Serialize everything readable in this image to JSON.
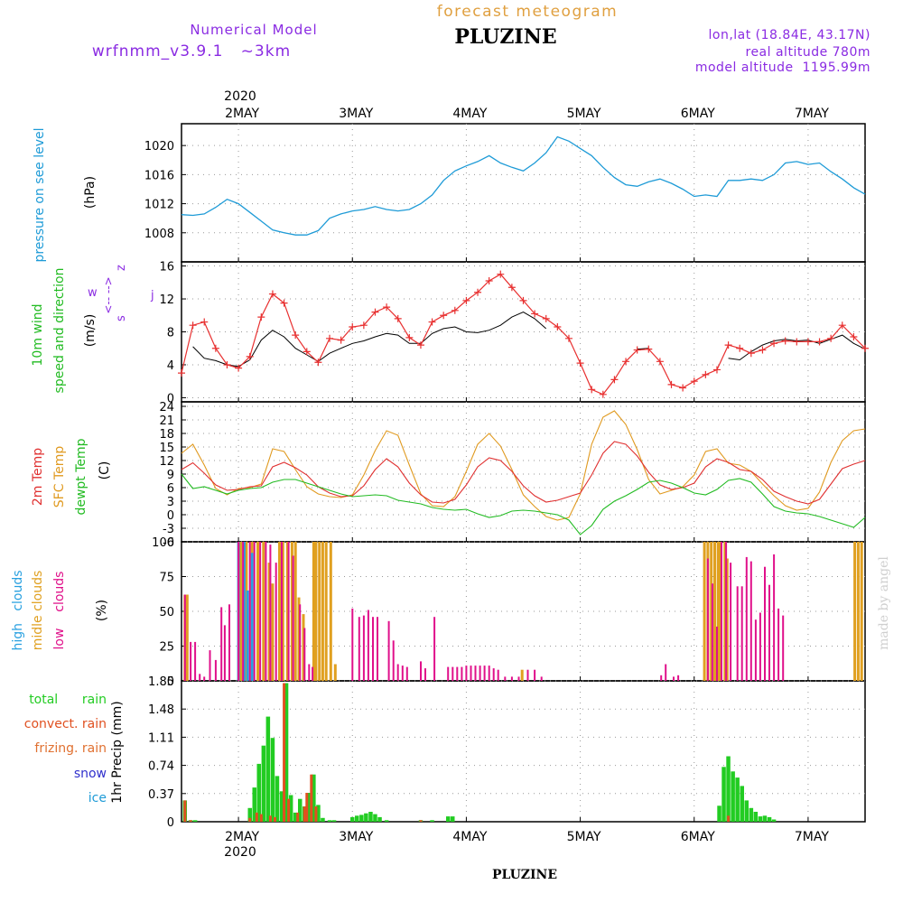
{
  "header": {
    "subtitle_top": "forecast meteogram",
    "title": "PLUZINE",
    "model_label": "Numerical Model",
    "model_name": "wrfnmm_v3.9.1   ~3km",
    "coords": "lon,lat (18.84E, 43.17N)",
    "real_altitude": "real altitude 780m",
    "model_altitude": "model altitude  1195.99m",
    "footer_title": "PLUZINE",
    "credit": "made by angel"
  },
  "time_axis": {
    "year": "2020",
    "days": [
      "2MAY",
      "3MAY",
      "4MAY",
      "5MAY",
      "6MAY",
      "7MAY"
    ]
  },
  "labels": {
    "pressure_label": "pressure on see level",
    "pressure_unit": "(hPa)",
    "wind_label_1": "10m wind",
    "wind_label_2": "speed and direction",
    "wind_unit": "(m/s)",
    "wind_w": "w",
    "wind_z": "z",
    "wind_s": "s",
    "wind_j": "j",
    "wind_arrows": "<-- -->",
    "temp_2m": "2m Temp",
    "temp_sfc": "SFC Temp",
    "temp_dew": "dewpt Temp",
    "temp_unit": "(C)",
    "cloud_high": "high   clouds",
    "cloud_mid": "midle clouds",
    "cloud_low": "low    clouds",
    "cloud_unit": "(%)",
    "rain_total": "total      rain",
    "rain_convect": "convect. rain",
    "rain_frizing": "frizing. rain",
    "rain_snow": "snow",
    "rain_ice": "ice",
    "rain_unit": "1hr Precip (mm)"
  },
  "colors": {
    "pressure": "#1e9bd7",
    "wind_label": "#22bb22",
    "wind_speed": "#e83030",
    "wind_gust": "#000000",
    "temp_2m": "#e03030",
    "temp_sfc": "#e09a20",
    "temp_dew": "#22bb22",
    "cloud_high": "#28a0e0",
    "cloud_mid": "#e0a020",
    "cloud_low": "#e0108a",
    "rain_total": "#22cc22",
    "rain_convect": "#e05020",
    "rain_snow": "#3030cc",
    "rain_ice": "#1e9bd7",
    "header_purple": "#8a2be2",
    "header_orange": "#e0a040"
  },
  "chart_data": [
    {
      "type": "line",
      "name": "pressure",
      "ylabel": "pressure on see level (hPa)",
      "yticks": [
        "1008",
        "1012",
        "1016",
        "1020"
      ],
      "ylim": [
        1004,
        1023
      ],
      "x_days": [
        1.5,
        1.6,
        1.7,
        1.8,
        1.9,
        2.0,
        2.1,
        2.2,
        2.3,
        2.4,
        2.5,
        2.6,
        2.7,
        2.8,
        2.9,
        3.0,
        3.1,
        3.2,
        3.3,
        3.4,
        3.5,
        3.6,
        3.7,
        3.8,
        3.9,
        4.0,
        4.1,
        4.2,
        4.3,
        4.4,
        4.5,
        4.6,
        4.7,
        4.8,
        4.9,
        5.0,
        5.1,
        5.2,
        5.3,
        5.4,
        5.5,
        5.6,
        5.7,
        5.8,
        5.9,
        6.0,
        6.1,
        6.2,
        6.3,
        6.4,
        6.5,
        6.6,
        6.7,
        6.8,
        6.9,
        7.0,
        7.1,
        7.2,
        7.3,
        7.4,
        7.5
      ],
      "values": [
        1010.5,
        1010.4,
        1010.6,
        1011.5,
        1012.6,
        1012.0,
        1010.8,
        1009.6,
        1008.4,
        1008.0,
        1007.7,
        1007.7,
        1008.3,
        1010.0,
        1010.6,
        1011.0,
        1011.2,
        1011.6,
        1011.2,
        1011.0,
        1011.2,
        1012.0,
        1013.2,
        1015.2,
        1016.5,
        1017.2,
        1017.8,
        1018.6,
        1017.6,
        1017.0,
        1016.5,
        1017.6,
        1019.0,
        1021.2,
        1020.6,
        1019.6,
        1018.6,
        1017.0,
        1015.6,
        1014.6,
        1014.4,
        1015.0,
        1015.4,
        1014.8,
        1014.0,
        1013.0,
        1013.2,
        1013.0,
        1015.2,
        1015.2,
        1015.4,
        1015.2,
        1016.0,
        1017.6,
        1017.8,
        1017.4,
        1017.6,
        1016.4,
        1015.4,
        1014.2,
        1013.3
      ]
    },
    {
      "type": "line",
      "name": "10m wind",
      "ylabel": "10m wind speed and direction (m/s)",
      "yticks": [
        "0",
        "4",
        "8",
        "12",
        "16"
      ],
      "ylim": [
        -0.5,
        16.5
      ],
      "x_days": [
        1.5,
        1.6,
        1.7,
        1.8,
        1.9,
        2.0,
        2.1,
        2.2,
        2.3,
        2.4,
        2.5,
        2.6,
        2.7,
        2.8,
        2.9,
        3.0,
        3.1,
        3.2,
        3.3,
        3.4,
        3.5,
        3.6,
        3.7,
        3.8,
        3.9,
        4.0,
        4.1,
        4.2,
        4.3,
        4.4,
        4.5,
        4.6,
        4.7,
        4.8,
        4.9,
        5.0,
        5.1,
        5.2,
        5.3,
        5.4,
        5.5,
        5.6,
        5.7,
        5.8,
        5.9,
        6.0,
        6.1,
        6.2,
        6.3,
        6.4,
        6.5,
        6.6,
        6.7,
        6.8,
        6.9,
        7.0,
        7.1,
        7.2,
        7.3,
        7.4,
        7.5
      ],
      "speed": [
        3.0,
        8.8,
        9.2,
        6.0,
        4.0,
        3.6,
        5.0,
        9.8,
        12.6,
        11.5,
        7.6,
        5.6,
        4.3,
        7.2,
        7.0,
        8.6,
        8.8,
        10.4,
        11.0,
        9.6,
        7.3,
        6.4,
        9.2,
        10.0,
        10.6,
        11.8,
        12.8,
        14.2,
        15.0,
        13.4,
        11.8,
        10.2,
        9.6,
        8.6,
        7.2,
        4.2,
        1.0,
        0.4,
        2.2,
        4.4,
        5.8,
        5.9,
        4.4,
        1.6,
        1.2,
        2.0,
        2.8,
        3.4,
        6.4,
        6.0,
        5.4,
        5.8,
        6.6,
        6.9,
        6.8,
        6.8,
        6.8,
        7.2,
        8.8,
        7.4,
        6.0
      ],
      "gust": [
        null,
        6.2,
        4.8,
        4.5,
        4.0,
        3.8,
        4.6,
        7.0,
        8.2,
        7.4,
        6.0,
        5.2,
        4.4,
        5.4,
        6.0,
        6.6,
        6.9,
        7.4,
        7.8,
        7.6,
        6.6,
        6.6,
        7.8,
        8.4,
        8.6,
        8.0,
        7.9,
        8.2,
        8.8,
        9.8,
        10.4,
        9.6,
        8.4,
        null,
        null,
        null,
        null,
        null,
        null,
        null,
        5.9,
        6.0,
        null,
        null,
        null,
        null,
        null,
        null,
        4.8,
        4.6,
        5.6,
        6.4,
        6.9,
        7.1,
        6.9,
        7.0,
        6.6,
        7.1,
        7.6,
        6.6,
        5.9
      ]
    },
    {
      "type": "line",
      "name": "temperature",
      "ylabel": "2m Temp / SFC Temp / dewpt Temp (C)",
      "yticks": [
        "-6",
        "-3",
        "0",
        "3",
        "6",
        "9",
        "12",
        "15",
        "18",
        "21",
        "24"
      ],
      "ylim": [
        -6,
        25
      ],
      "x_days": [
        1.5,
        1.6,
        1.7,
        1.8,
        1.9,
        2.0,
        2.1,
        2.2,
        2.3,
        2.4,
        2.5,
        2.6,
        2.7,
        2.8,
        2.9,
        3.0,
        3.1,
        3.2,
        3.3,
        3.4,
        3.5,
        3.6,
        3.7,
        3.8,
        3.9,
        4.0,
        4.1,
        4.2,
        4.3,
        4.4,
        4.5,
        4.6,
        4.7,
        4.8,
        4.9,
        5.0,
        5.1,
        5.2,
        5.3,
        5.4,
        5.5,
        5.6,
        5.7,
        5.8,
        5.9,
        6.0,
        6.1,
        6.2,
        6.3,
        6.4,
        6.5,
        6.6,
        6.7,
        6.8,
        6.9,
        7.0,
        7.1,
        7.2,
        7.3,
        7.4,
        7.5
      ],
      "t2m": [
        10.0,
        11.5,
        9.2,
        6.6,
        5.4,
        5.6,
        6.2,
        6.4,
        10.6,
        11.6,
        10.4,
        8.8,
        6.2,
        4.8,
        4.0,
        4.2,
        6.4,
        10.0,
        12.4,
        10.6,
        7.0,
        4.4,
        2.8,
        2.6,
        3.4,
        6.6,
        10.6,
        12.6,
        12.0,
        9.6,
        6.4,
        4.2,
        2.8,
        3.2,
        4.0,
        4.8,
        8.8,
        13.6,
        16.2,
        15.6,
        13.0,
        9.4,
        6.6,
        5.6,
        6.0,
        7.0,
        10.6,
        12.4,
        11.6,
        10.0,
        9.6,
        7.8,
        5.2,
        4.0,
        3.0,
        2.4,
        3.4,
        6.8,
        10.2,
        11.2,
        12.0
      ],
      "sfc": [
        13.6,
        15.6,
        11.0,
        5.8,
        4.4,
        5.8,
        6.0,
        6.8,
        14.6,
        14.0,
        10.0,
        6.2,
        4.6,
        4.0,
        3.8,
        4.4,
        8.8,
        14.2,
        18.6,
        17.6,
        11.0,
        4.6,
        2.0,
        1.8,
        4.0,
        9.6,
        15.6,
        18.0,
        15.2,
        10.0,
        4.4,
        1.8,
        -0.4,
        -1.2,
        -0.6,
        4.6,
        15.6,
        21.6,
        23.0,
        20.0,
        14.4,
        7.8,
        4.6,
        5.4,
        6.2,
        8.8,
        14.0,
        14.6,
        11.4,
        11.0,
        9.6,
        6.8,
        4.2,
        2.0,
        1.0,
        1.4,
        5.0,
        11.6,
        16.4,
        18.6,
        19.0
      ],
      "dewpt": [
        9.0,
        5.8,
        6.2,
        5.4,
        4.6,
        5.4,
        5.8,
        6.0,
        7.2,
        7.8,
        7.8,
        7.0,
        6.2,
        5.4,
        4.6,
        4.0,
        4.2,
        4.4,
        4.2,
        3.2,
        2.8,
        2.4,
        1.6,
        1.2,
        1.0,
        1.2,
        0.2,
        -0.6,
        -0.2,
        0.8,
        1.0,
        0.8,
        0.4,
        0.0,
        -1.2,
        -4.4,
        -2.4,
        1.2,
        3.0,
        4.2,
        5.6,
        7.2,
        7.6,
        7.0,
        6.0,
        4.8,
        4.4,
        5.6,
        7.6,
        8.0,
        7.2,
        4.6,
        1.8,
        0.8,
        0.4,
        0.2,
        -0.4,
        -1.2,
        -2.0,
        -2.8,
        -0.6
      ]
    },
    {
      "type": "bar",
      "name": "clouds",
      "ylabel": "high / midle / low clouds (%)",
      "yticks": [
        "0",
        "25",
        "50",
        "75",
        "100"
      ],
      "ylim": [
        0,
        100
      ],
      "high": [
        [
          2.0,
          100
        ],
        [
          2.05,
          100
        ],
        [
          2.08,
          65
        ],
        [
          2.12,
          92
        ]
      ],
      "mid": [
        [
          1.53,
          62
        ],
        [
          1.55,
          62
        ],
        [
          2.02,
          100
        ],
        [
          2.07,
          100
        ],
        [
          2.12,
          100
        ],
        [
          2.17,
          100
        ],
        [
          2.22,
          100
        ],
        [
          2.27,
          85
        ],
        [
          2.3,
          70
        ],
        [
          2.36,
          100
        ],
        [
          2.39,
          100
        ],
        [
          2.43,
          100
        ],
        [
          2.47,
          100
        ],
        [
          2.5,
          100
        ],
        [
          2.53,
          60
        ],
        [
          2.57,
          48
        ],
        [
          2.66,
          100
        ],
        [
          2.68,
          100
        ],
        [
          2.71,
          100
        ],
        [
          2.74,
          100
        ],
        [
          2.77,
          100
        ],
        [
          2.81,
          100
        ],
        [
          2.85,
          12
        ],
        [
          4.49,
          8
        ],
        [
          6.09,
          100
        ],
        [
          6.12,
          100
        ],
        [
          6.15,
          100
        ],
        [
          6.18,
          100
        ],
        [
          6.21,
          100
        ],
        [
          6.23,
          100
        ],
        [
          6.27,
          100
        ],
        [
          6.29,
          88
        ],
        [
          7.41,
          100
        ],
        [
          7.44,
          100
        ],
        [
          7.47,
          100
        ]
      ],
      "low": [
        [
          1.53,
          62
        ],
        [
          1.58,
          28
        ],
        [
          1.62,
          28
        ],
        [
          1.66,
          5
        ],
        [
          1.7,
          3
        ],
        [
          1.75,
          22
        ],
        [
          1.8,
          15
        ],
        [
          1.85,
          53
        ],
        [
          1.88,
          40
        ],
        [
          1.92,
          55
        ],
        [
          2.0,
          100
        ],
        [
          2.04,
          100
        ],
        [
          2.1,
          100
        ],
        [
          2.14,
          100
        ],
        [
          2.19,
          100
        ],
        [
          2.24,
          100
        ],
        [
          2.28,
          98
        ],
        [
          2.33,
          85
        ],
        [
          2.38,
          100
        ],
        [
          2.44,
          100
        ],
        [
          2.48,
          90
        ],
        [
          2.54,
          55
        ],
        [
          2.58,
          38
        ],
        [
          2.62,
          12
        ],
        [
          2.65,
          10
        ],
        [
          3.0,
          52
        ],
        [
          3.06,
          46
        ],
        [
          3.1,
          47
        ],
        [
          3.14,
          51
        ],
        [
          3.18,
          46
        ],
        [
          3.22,
          46
        ],
        [
          3.32,
          43
        ],
        [
          3.36,
          29
        ],
        [
          3.4,
          12
        ],
        [
          3.44,
          11
        ],
        [
          3.48,
          10
        ],
        [
          3.6,
          14
        ],
        [
          3.64,
          9
        ],
        [
          3.72,
          46
        ],
        [
          3.84,
          10
        ],
        [
          3.88,
          10
        ],
        [
          3.92,
          10
        ],
        [
          3.96,
          10
        ],
        [
          4.0,
          11
        ],
        [
          4.04,
          11
        ],
        [
          4.08,
          11
        ],
        [
          4.12,
          11
        ],
        [
          4.16,
          11
        ],
        [
          4.2,
          11
        ],
        [
          4.24,
          9
        ],
        [
          4.28,
          8
        ],
        [
          4.34,
          3
        ],
        [
          4.4,
          3
        ],
        [
          4.46,
          3
        ],
        [
          4.54,
          8
        ],
        [
          4.6,
          8
        ],
        [
          4.66,
          3
        ],
        [
          5.71,
          4
        ],
        [
          5.75,
          12
        ],
        [
          5.82,
          3
        ],
        [
          5.86,
          4
        ],
        [
          6.12,
          88
        ],
        [
          6.16,
          70
        ],
        [
          6.2,
          39
        ],
        [
          6.24,
          100
        ],
        [
          6.28,
          100
        ],
        [
          6.32,
          85
        ],
        [
          6.38,
          68
        ],
        [
          6.42,
          68
        ],
        [
          6.46,
          89
        ],
        [
          6.5,
          86
        ],
        [
          6.54,
          44
        ],
        [
          6.58,
          49
        ],
        [
          6.62,
          82
        ],
        [
          6.66,
          69
        ],
        [
          6.7,
          91
        ],
        [
          6.74,
          52
        ],
        [
          6.78,
          47
        ]
      ]
    },
    {
      "type": "bar",
      "name": "precipitation",
      "ylabel": "1hr Precip (mm)",
      "yticks": [
        "0",
        "0.37",
        "0.74",
        "1.11",
        "1.48",
        "1.85"
      ],
      "ylim": [
        0,
        1.85
      ],
      "total": [
        [
          1.53,
          0.28
        ],
        [
          1.58,
          0.02
        ],
        [
          1.62,
          0.02
        ],
        [
          2.1,
          0.18
        ],
        [
          2.14,
          0.45
        ],
        [
          2.18,
          0.76
        ],
        [
          2.22,
          1.0
        ],
        [
          2.26,
          1.38
        ],
        [
          2.3,
          1.1
        ],
        [
          2.34,
          0.6
        ],
        [
          2.38,
          0.4
        ],
        [
          2.42,
          1.82
        ],
        [
          2.46,
          0.35
        ],
        [
          2.5,
          0.12
        ],
        [
          2.54,
          0.3
        ],
        [
          2.58,
          0.2
        ],
        [
          2.62,
          0.38
        ],
        [
          2.66,
          0.62
        ],
        [
          2.7,
          0.22
        ],
        [
          2.74,
          0.05
        ],
        [
          2.8,
          0.02
        ],
        [
          2.84,
          0.02
        ],
        [
          3.0,
          0.06
        ],
        [
          3.04,
          0.08
        ],
        [
          3.08,
          0.09
        ],
        [
          3.12,
          0.11
        ],
        [
          3.16,
          0.13
        ],
        [
          3.2,
          0.1
        ],
        [
          3.24,
          0.06
        ],
        [
          3.3,
          0.02
        ],
        [
          3.6,
          0.02
        ],
        [
          3.7,
          0.02
        ],
        [
          3.84,
          0.07
        ],
        [
          3.88,
          0.07
        ],
        [
          6.22,
          0.21
        ],
        [
          6.26,
          0.72
        ],
        [
          6.3,
          0.86
        ],
        [
          6.34,
          0.66
        ],
        [
          6.38,
          0.58
        ],
        [
          6.42,
          0.47
        ],
        [
          6.46,
          0.28
        ],
        [
          6.5,
          0.18
        ],
        [
          6.54,
          0.13
        ],
        [
          6.58,
          0.07
        ],
        [
          6.62,
          0.08
        ],
        [
          6.66,
          0.06
        ],
        [
          6.7,
          0.03
        ]
      ],
      "convect": [
        [
          1.53,
          0.28
        ],
        [
          1.58,
          0.02
        ],
        [
          2.1,
          0.05
        ],
        [
          2.16,
          0.12
        ],
        [
          2.2,
          0.1
        ],
        [
          2.28,
          0.08
        ],
        [
          2.32,
          0.06
        ],
        [
          2.4,
          1.82
        ],
        [
          2.44,
          0.3
        ],
        [
          2.52,
          0.12
        ],
        [
          2.58,
          0.2
        ],
        [
          2.6,
          0.38
        ],
        [
          2.64,
          0.62
        ],
        [
          2.68,
          0.2
        ],
        [
          3.6,
          0.02
        ],
        [
          6.3,
          0.08
        ]
      ]
    }
  ]
}
